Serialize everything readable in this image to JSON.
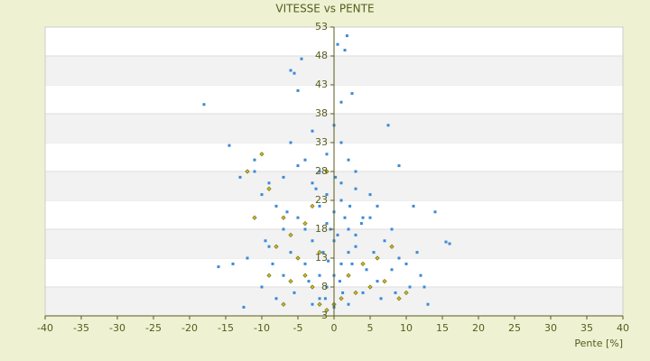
{
  "chart_data": {
    "type": "scatter",
    "title": "VITESSE vs PENTE",
    "x_label": "Pente [%]",
    "xlim": [
      -40,
      40
    ],
    "xticks": [
      -40,
      -35,
      -30,
      -25,
      -20,
      -15,
      -10,
      -5,
      0,
      5,
      10,
      15,
      20,
      25,
      30,
      35,
      40
    ],
    "ylim": [
      3,
      53
    ],
    "yticks": [
      3,
      8,
      13,
      18,
      23,
      28,
      33,
      38,
      43,
      48,
      53
    ],
    "grid": true,
    "series": [
      {
        "color": "#3a8ad6",
        "x": [
          -18,
          -14.5,
          -16,
          -14,
          -12.5,
          -12,
          -10,
          -9,
          -8,
          -7,
          -6,
          -5.5,
          -4.5,
          -5,
          -3,
          -6,
          -4,
          -2,
          -1,
          0,
          1,
          2,
          3,
          1.5,
          0.5,
          1.8,
          2.5,
          1,
          7.5,
          9,
          11,
          14,
          16,
          15.5,
          11.5,
          12.5,
          12,
          10,
          8,
          6,
          5,
          4,
          3,
          2,
          1,
          0,
          -1,
          -2,
          -3,
          0,
          2,
          4,
          6,
          8,
          -5,
          -4,
          -3,
          -2,
          -1,
          0,
          1,
          2,
          3,
          -6,
          -7,
          -8,
          -9,
          -10,
          -11,
          -7,
          -5,
          -3,
          -1,
          1,
          3,
          5,
          7,
          9,
          -4,
          -2,
          0,
          1.5,
          -0.5,
          0.5,
          -1.5,
          2.5,
          4.5,
          -3.5,
          -5.5,
          6.5,
          8.5,
          10.5,
          -8.5,
          -9.5,
          -6.5,
          -2.5,
          0.2,
          2.2,
          3.8,
          5.5,
          -0.8,
          0.8,
          1.2,
          -1.2,
          13,
          -13,
          -11
        ],
        "y": [
          39.6,
          32.5,
          11.5,
          12,
          4.5,
          13,
          8,
          15,
          6,
          10,
          45.5,
          45,
          47.5,
          42,
          35,
          33,
          30,
          28,
          31,
          36,
          33,
          30,
          25,
          49,
          50,
          51.5,
          41.5,
          40,
          36,
          29,
          22,
          21,
          15.5,
          15.8,
          14,
          8,
          10,
          12,
          18,
          22,
          24,
          20,
          17,
          14,
          12,
          10,
          8,
          6,
          5,
          4.5,
          5,
          7,
          9,
          11,
          20,
          18,
          16,
          22,
          19,
          21,
          23,
          18,
          15,
          14,
          18,
          22,
          26,
          24,
          28,
          27,
          29,
          26,
          24,
          26,
          28,
          20,
          16,
          13,
          12,
          10,
          16,
          20,
          18,
          17,
          14,
          12,
          11,
          9,
          7,
          6,
          7,
          8,
          12,
          16,
          21,
          25,
          27,
          22,
          19,
          14,
          12.5,
          9,
          7,
          6,
          5,
          27,
          30
        ]
      },
      {
        "color": "#c9bd1e",
        "x": [
          -12,
          -10,
          -9,
          -7,
          -6,
          -5,
          -4,
          -3,
          -2,
          -1,
          0,
          1,
          3,
          5,
          7,
          9,
          10,
          -8,
          -6,
          -4,
          -2,
          2,
          4,
          6,
          -11,
          -9,
          -7,
          -3,
          -1,
          8
        ],
        "y": [
          28,
          31,
          25,
          20,
          17,
          13,
          10,
          8,
          5,
          4,
          5,
          6,
          7,
          8,
          9,
          6,
          7,
          15,
          9,
          19,
          14,
          10,
          12,
          13,
          20,
          10,
          5,
          22,
          28,
          15
        ]
      }
    ]
  }
}
